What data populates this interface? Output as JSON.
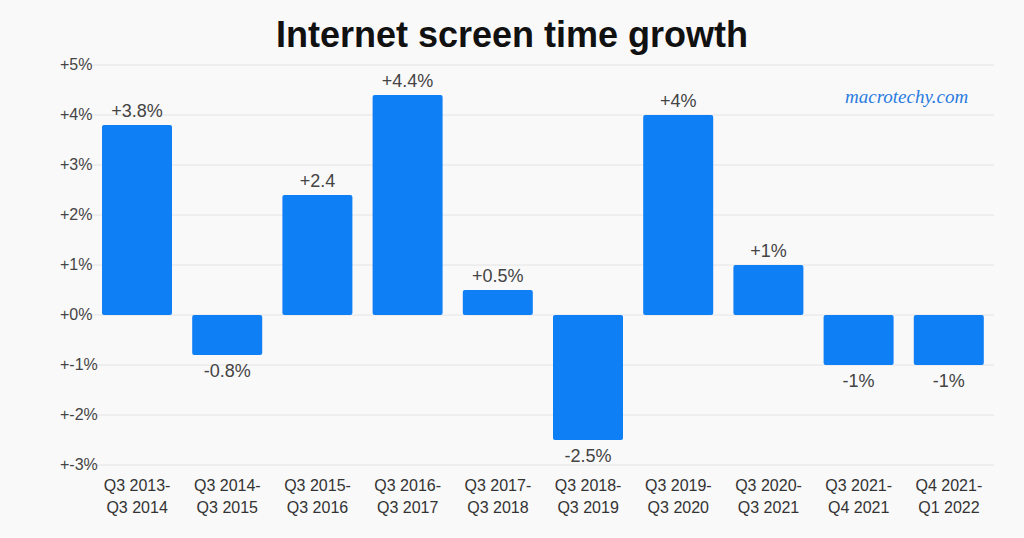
{
  "chart_data": {
    "type": "bar",
    "title": "Internet screen time growth",
    "watermark": "macrotechy.com",
    "categories": [
      "Q3 2013-Q3 2014",
      "Q3 2014-Q3 2015",
      "Q3 2015-Q3 2016",
      "Q3 2016-Q3 2017",
      "Q3 2017-Q3 2018",
      "Q3 2018-Q3 2019",
      "Q3 2019-Q3 2020",
      "Q3 2020-Q3 2021",
      "Q3 2021-Q4 2021",
      "Q4 2021-Q1 2022"
    ],
    "values": [
      3.8,
      -0.8,
      2.4,
      4.4,
      0.5,
      -2.5,
      4,
      1,
      -1,
      -1
    ],
    "value_labels": [
      "+3.8%",
      "-0.8%",
      "+2.4",
      "+4.4%",
      "+0.5%",
      "-2.5%",
      "+4%",
      "+1%",
      "-1%",
      "-1%"
    ],
    "data_labels": true,
    "color": "#0f7ff6",
    "ylim": [
      -3,
      5
    ],
    "yticks": [
      {
        "value": 5,
        "label": "+5%"
      },
      {
        "value": 4,
        "label": "+4%"
      },
      {
        "value": 3,
        "label": "+3%"
      },
      {
        "value": 2,
        "label": "+2%"
      },
      {
        "value": 1,
        "label": "+1%"
      },
      {
        "value": 0,
        "label": "+0%"
      },
      {
        "value": -1,
        "label": "+-1%"
      },
      {
        "value": -2,
        "label": "+-2%"
      },
      {
        "value": -3,
        "label": "+-3%"
      }
    ],
    "grid": true
  }
}
